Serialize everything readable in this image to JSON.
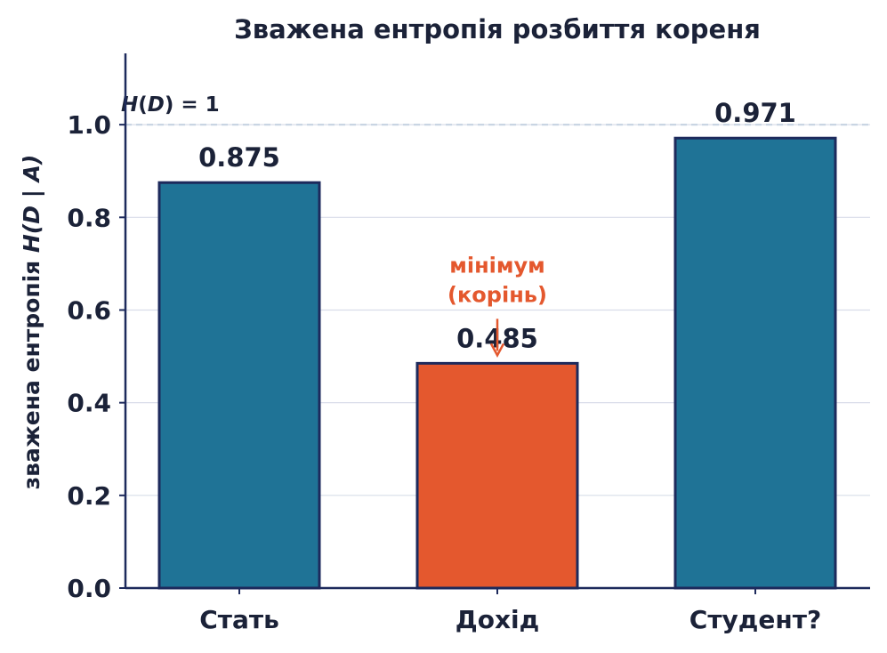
{
  "chart_data": {
    "type": "bar",
    "title": "Зважена ентропія розбиття кореня",
    "ylabel_prefix": "зважена ентропія ",
    "ylabel_math": "H(D | A)",
    "xlabel": "",
    "categories": [
      "Стать",
      "Дохід",
      "Студент?"
    ],
    "values": [
      0.875,
      0.485,
      0.971
    ],
    "value_labels": [
      "0.875",
      "0.485",
      "0.971"
    ],
    "ylim": [
      0,
      1.15
    ],
    "yticks": [
      0.0,
      0.2,
      0.4,
      0.6,
      0.8,
      1.0
    ],
    "ytick_labels": [
      "0.0",
      "0.2",
      "0.4",
      "0.6",
      "0.8",
      "1.0"
    ],
    "grid": true,
    "reference_line": {
      "value": 1.0,
      "label": "H(D) = 1"
    },
    "highlight_index": 1,
    "annotation": {
      "line1": "мінімум",
      "line2": "(корінь)",
      "target_value": 0.485
    },
    "colors": {
      "bar": "#1f7396",
      "highlight": "#e4582e",
      "bar_edge": "#1d2a5c",
      "axis": "#1d2a5c",
      "reference_line": "#c9d5e3",
      "text": "#1b2238",
      "annotation": "#e4582e"
    }
  }
}
